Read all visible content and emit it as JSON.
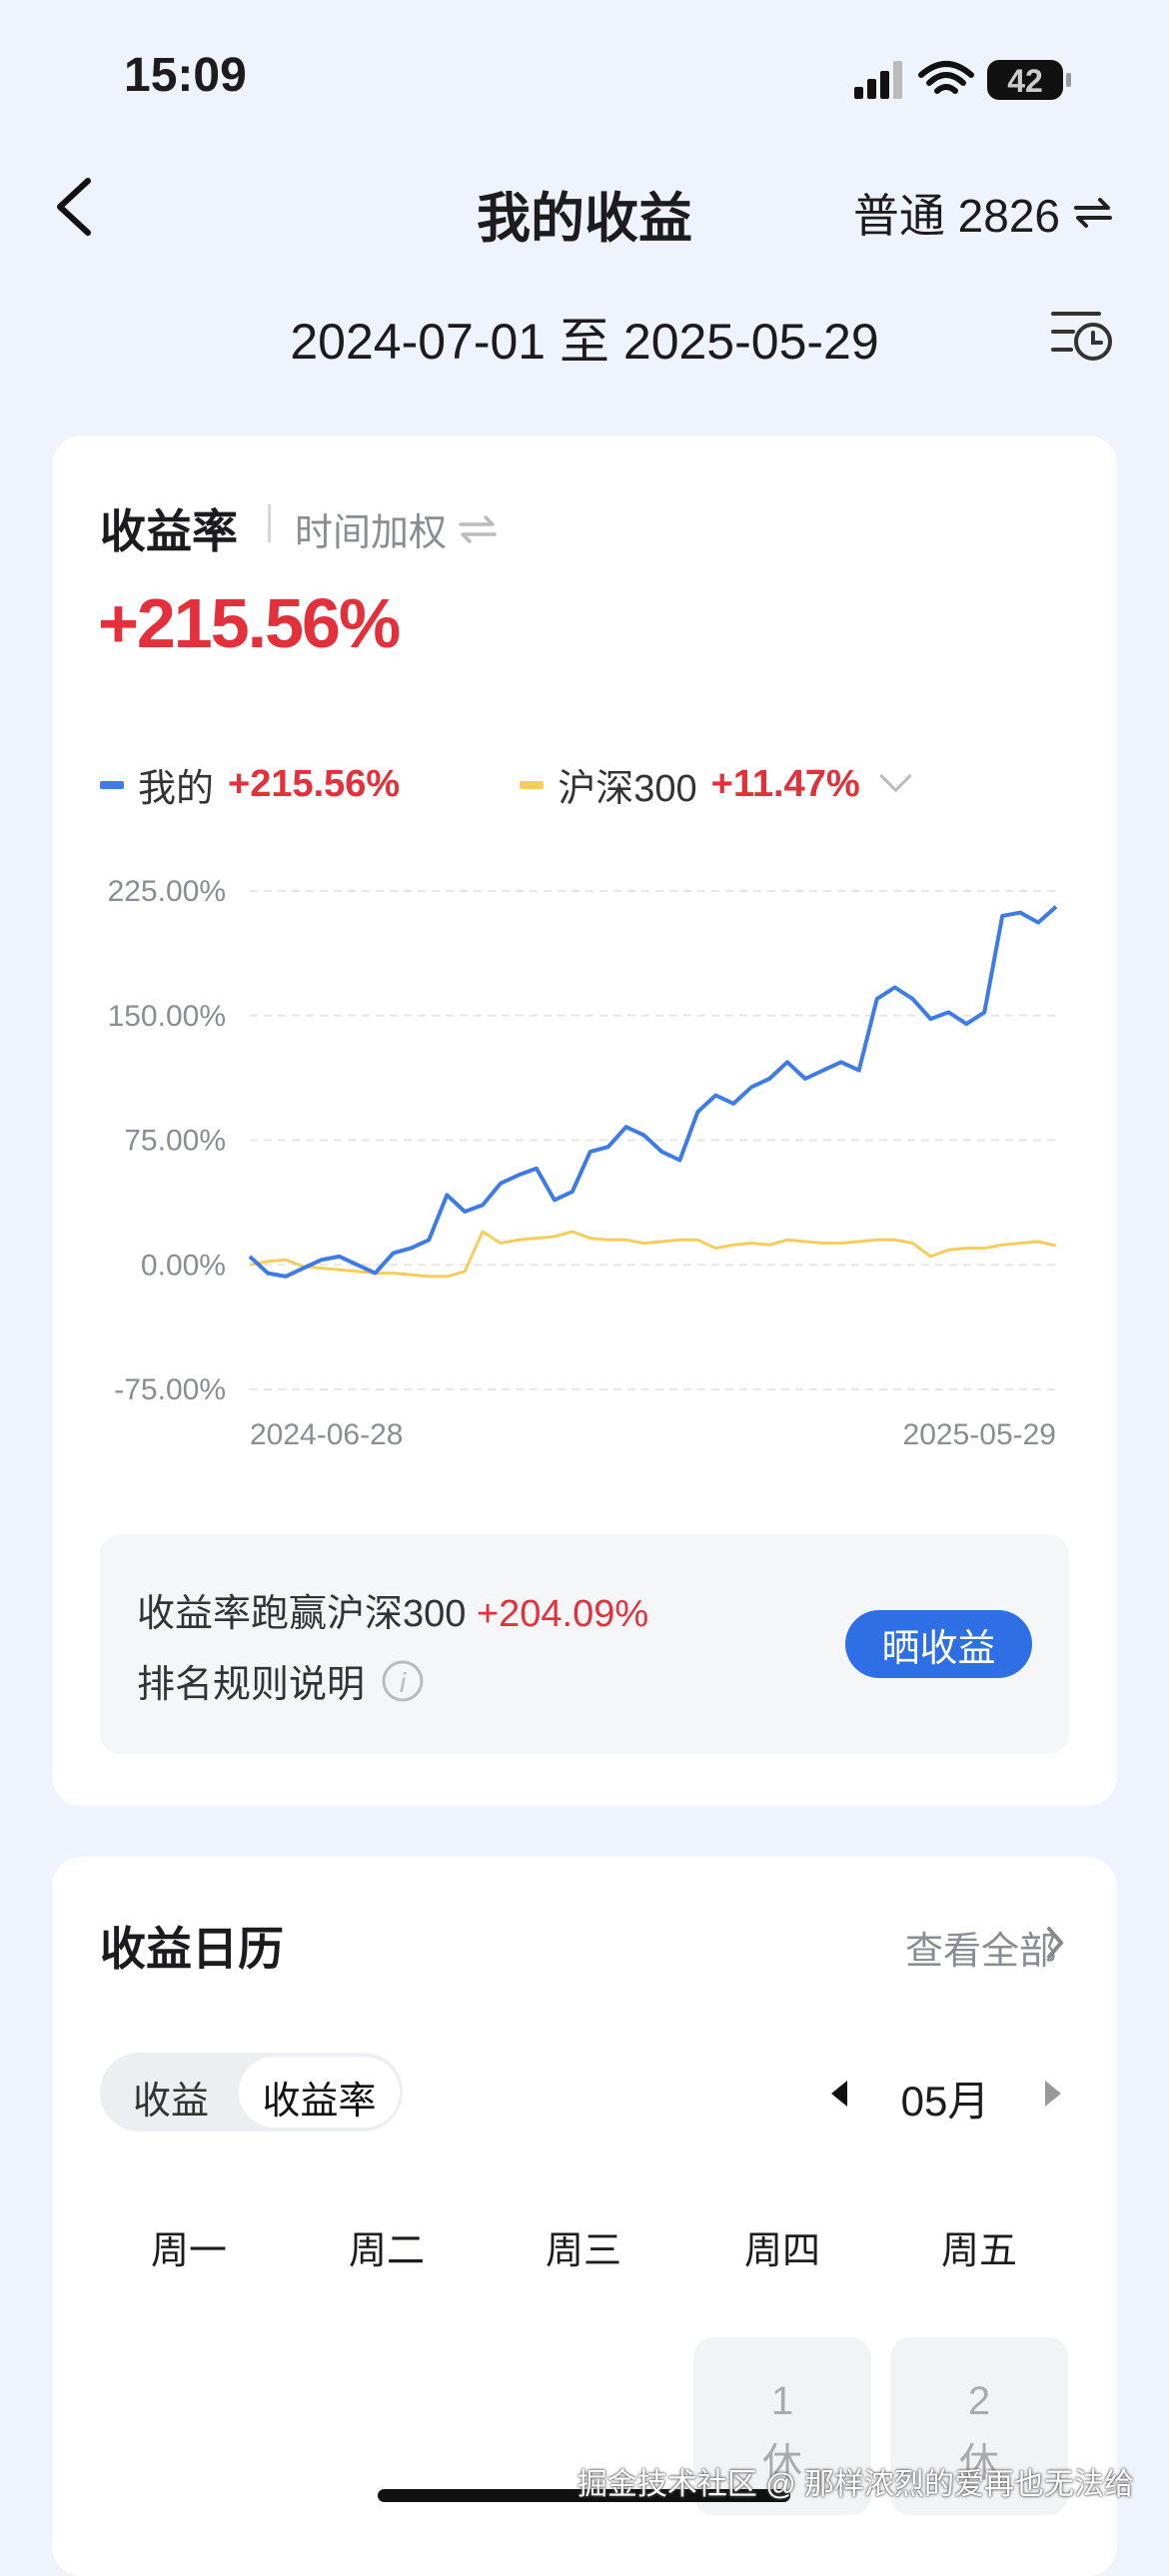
{
  "status_bar": {
    "time": "15:09",
    "battery": "42"
  },
  "nav": {
    "title": "我的收益",
    "account": "普通 2826"
  },
  "date_range": "2024-07-01 至 2025-05-29",
  "return_card": {
    "title": "收益率",
    "mode": "时间加权",
    "total": "+215.56%",
    "chart": {
      "type": "line",
      "categories": [
        "2024-06-28",
        null,
        null,
        null,
        null,
        null,
        null,
        null,
        null,
        null,
        null,
        null,
        null,
        null,
        null,
        null,
        null,
        null,
        null,
        null,
        null,
        null,
        null,
        null,
        null,
        null,
        null,
        null,
        null,
        null,
        null,
        null,
        null,
        null,
        null,
        null,
        null,
        null,
        null,
        null,
        null,
        null,
        null,
        null,
        null,
        "2025-05-29"
      ],
      "series": [
        {
          "name": "我的",
          "legend_value": "+215.56%",
          "color": "#3d7be6",
          "values": [
            5,
            -5,
            -7,
            -2,
            3,
            5,
            0,
            -5,
            7,
            10,
            15,
            42,
            32,
            36,
            49,
            54,
            58,
            39,
            44,
            68,
            71,
            83,
            78,
            68,
            63,
            92,
            102,
            97,
            107,
            112,
            122,
            112,
            117,
            122,
            117,
            160,
            167,
            160,
            148,
            152,
            145,
            152,
            210,
            212,
            206,
            215.56
          ]
        },
        {
          "name": "沪深300",
          "legend_value": "+11.47%",
          "color": "#f5cd5a",
          "values": [
            0,
            2,
            3,
            -1,
            -2,
            -3,
            -4,
            -5,
            -5,
            -6,
            -7,
            -7,
            -4,
            20,
            13,
            15,
            16,
            17,
            20,
            16,
            15,
            15,
            13,
            14,
            15,
            15,
            10,
            12,
            13,
            12,
            15,
            14,
            13,
            13,
            14,
            15,
            15,
            13,
            5,
            9,
            10,
            10,
            12,
            13,
            14,
            11.47
          ]
        }
      ],
      "ylim": [
        -75,
        225
      ],
      "yticks": [
        {
          "value": -75,
          "label": "-75.00%"
        },
        {
          "value": 0,
          "label": "0.00%"
        },
        {
          "value": 75,
          "label": "75.00%"
        },
        {
          "value": 150,
          "label": "150.00%"
        },
        {
          "value": 225,
          "label": "225.00%"
        }
      ],
      "grid": true
    },
    "summary": {
      "text": "收益率跑赢沪深300",
      "value": "+204.09%",
      "rule": "排名规则说明",
      "button": "晒收益"
    }
  },
  "calendar": {
    "title": "收益日历",
    "view_all": "查看全部",
    "tabs": [
      "收益",
      "收益率"
    ],
    "month": "05月",
    "weekdays": [
      "周一",
      "周二",
      "周三",
      "周四",
      "周五"
    ],
    "days": [
      {
        "day": "1",
        "note": "休"
      },
      {
        "day": "2",
        "note": "休"
      }
    ]
  },
  "watermark": "掘金技术社区 @ 那样浓烈的爱再也无法给"
}
